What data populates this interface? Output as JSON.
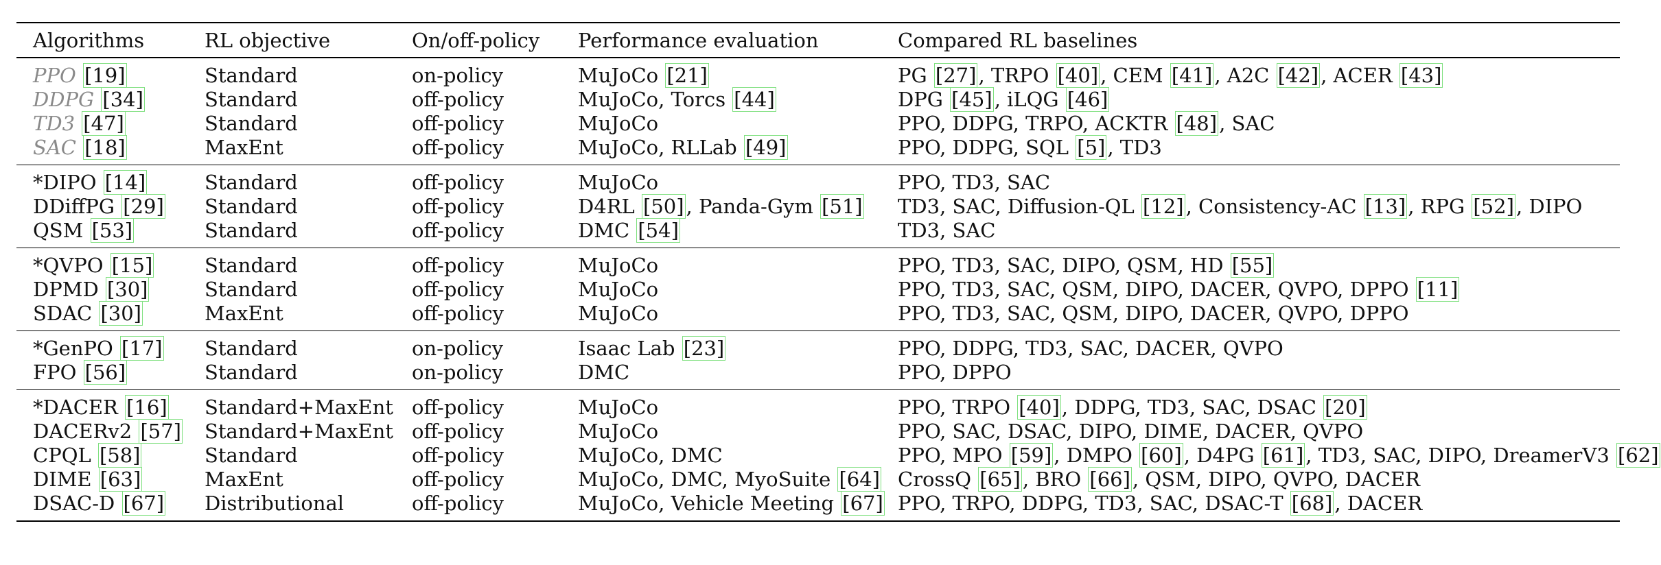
{
  "header": [
    "Algorithms",
    "RL objective",
    "On/off-policy",
    "Performance evaluation",
    "Compared RL baselines"
  ],
  "groups": [
    {
      "rows": [
        {
          "algorithm": [
            {
              "text": "PPO",
              "style": "gray"
            },
            {
              "text": " "
            },
            {
              "text": "[19]",
              "ref": true
            }
          ],
          "objective": "Standard",
          "policy": "on-policy",
          "evaluation": [
            {
              "text": "MuJoCo "
            },
            {
              "text": "[21]",
              "ref": true
            }
          ],
          "baselines": [
            {
              "text": "PG "
            },
            {
              "text": "[27]",
              "ref": true
            },
            {
              "text": ", TRPO "
            },
            {
              "text": "[40]",
              "ref": true
            },
            {
              "text": ", CEM "
            },
            {
              "text": "[41]",
              "ref": true
            },
            {
              "text": ", A2C "
            },
            {
              "text": "[42]",
              "ref": true
            },
            {
              "text": ", ACER "
            },
            {
              "text": "[43]",
              "ref": true
            }
          ]
        },
        {
          "algorithm": [
            {
              "text": "DDPG",
              "style": "gray"
            },
            {
              "text": " "
            },
            {
              "text": "[34]",
              "ref": true
            }
          ],
          "objective": "Standard",
          "policy": "off-policy",
          "evaluation": [
            {
              "text": "MuJoCo, Torcs "
            },
            {
              "text": "[44]",
              "ref": true
            }
          ],
          "baselines": [
            {
              "text": "DPG "
            },
            {
              "text": "[45]",
              "ref": true
            },
            {
              "text": ", iLQG "
            },
            {
              "text": "[46]",
              "ref": true
            }
          ]
        },
        {
          "algorithm": [
            {
              "text": "TD3",
              "style": "gray"
            },
            {
              "text": " "
            },
            {
              "text": "[47]",
              "ref": true
            }
          ],
          "objective": "Standard",
          "policy": "off-policy",
          "evaluation": [
            {
              "text": "MuJoCo"
            }
          ],
          "baselines": [
            {
              "text": "PPO, DDPG, TRPO, ACKTR "
            },
            {
              "text": "[48]",
              "ref": true
            },
            {
              "text": ", SAC"
            }
          ]
        },
        {
          "algorithm": [
            {
              "text": "SAC",
              "style": "gray"
            },
            {
              "text": " "
            },
            {
              "text": "[18]",
              "ref": true
            }
          ],
          "objective": "MaxEnt",
          "policy": "off-policy",
          "evaluation": [
            {
              "text": "MuJoCo, RLLab "
            },
            {
              "text": "[49]",
              "ref": true
            }
          ],
          "baselines": [
            {
              "text": "PPO, DDPG, SQL "
            },
            {
              "text": "[5]",
              "ref": true
            },
            {
              "text": ", TD3"
            }
          ]
        }
      ]
    },
    {
      "rows": [
        {
          "algorithm": [
            {
              "text": "*DIPO "
            },
            {
              "text": "[14]",
              "ref": true
            }
          ],
          "objective": "Standard",
          "policy": "off-policy",
          "evaluation": [
            {
              "text": "MuJoCo"
            }
          ],
          "baselines": [
            {
              "text": "PPO, TD3, SAC"
            }
          ]
        },
        {
          "algorithm": [
            {
              "text": "DDiffPG "
            },
            {
              "text": "[29]",
              "ref": true
            }
          ],
          "objective": "Standard",
          "policy": "off-policy",
          "evaluation": [
            {
              "text": "D4RL "
            },
            {
              "text": "[50]",
              "ref": true
            },
            {
              "text": ", Panda-Gym "
            },
            {
              "text": "[51]",
              "ref": true
            }
          ],
          "baselines": [
            {
              "text": "TD3, SAC, Diffusion-QL "
            },
            {
              "text": "[12]",
              "ref": true
            },
            {
              "text": ", Consistency-AC "
            },
            {
              "text": "[13]",
              "ref": true
            },
            {
              "text": ", RPG "
            },
            {
              "text": "[52]",
              "ref": true
            },
            {
              "text": ", DIPO"
            }
          ]
        },
        {
          "algorithm": [
            {
              "text": "QSM "
            },
            {
              "text": "[53]",
              "ref": true
            }
          ],
          "objective": "Standard",
          "policy": "off-policy",
          "evaluation": [
            {
              "text": "DMC "
            },
            {
              "text": "[54]",
              "ref": true
            }
          ],
          "baselines": [
            {
              "text": "TD3, SAC"
            }
          ]
        }
      ]
    },
    {
      "rows": [
        {
          "algorithm": [
            {
              "text": "*QVPO "
            },
            {
              "text": "[15]",
              "ref": true
            }
          ],
          "objective": "Standard",
          "policy": "off-policy",
          "evaluation": [
            {
              "text": "MuJoCo"
            }
          ],
          "baselines": [
            {
              "text": "PPO, TD3, SAC, DIPO, QSM, HD "
            },
            {
              "text": "[55]",
              "ref": true
            }
          ]
        },
        {
          "algorithm": [
            {
              "text": "DPMD "
            },
            {
              "text": "[30]",
              "ref": true
            }
          ],
          "objective": "Standard",
          "policy": "off-policy",
          "evaluation": [
            {
              "text": "MuJoCo"
            }
          ],
          "baselines": [
            {
              "text": "PPO, TD3, SAC, QSM, DIPO, DACER, QVPO, DPPO "
            },
            {
              "text": "[11]",
              "ref": true
            }
          ]
        },
        {
          "algorithm": [
            {
              "text": "SDAC "
            },
            {
              "text": "[30]",
              "ref": true
            }
          ],
          "objective": "MaxEnt",
          "policy": "off-policy",
          "evaluation": [
            {
              "text": "MuJoCo"
            }
          ],
          "baselines": [
            {
              "text": "PPO, TD3, SAC, QSM, DIPO, DACER, QVPO, DPPO"
            }
          ]
        }
      ]
    },
    {
      "rows": [
        {
          "algorithm": [
            {
              "text": "*GenPO "
            },
            {
              "text": "[17]",
              "ref": true
            }
          ],
          "objective": "Standard",
          "policy": "on-policy",
          "evaluation": [
            {
              "text": "Isaac Lab "
            },
            {
              "text": "[23]",
              "ref": true
            }
          ],
          "baselines": [
            {
              "text": "PPO, DDPG, TD3, SAC, DACER, QVPO"
            }
          ]
        },
        {
          "algorithm": [
            {
              "text": "FPO "
            },
            {
              "text": "[56]",
              "ref": true
            }
          ],
          "objective": "Standard",
          "policy": "on-policy",
          "evaluation": [
            {
              "text": "DMC"
            }
          ],
          "baselines": [
            {
              "text": "PPO, DPPO"
            }
          ]
        }
      ]
    },
    {
      "rows": [
        {
          "algorithm": [
            {
              "text": "*DACER "
            },
            {
              "text": "[16]",
              "ref": true
            }
          ],
          "objective": "Standard+MaxEnt",
          "policy": "off-policy",
          "evaluation": [
            {
              "text": "MuJoCo"
            }
          ],
          "baselines": [
            {
              "text": "PPO, TRPO "
            },
            {
              "text": "[40]",
              "ref": true
            },
            {
              "text": ", DDPG, TD3, SAC, DSAC "
            },
            {
              "text": "[20]",
              "ref": true
            }
          ]
        },
        {
          "algorithm": [
            {
              "text": "DACERv2 "
            },
            {
              "text": "[57]",
              "ref": true
            }
          ],
          "objective": "Standard+MaxEnt",
          "policy": "off-policy",
          "evaluation": [
            {
              "text": "MuJoCo"
            }
          ],
          "baselines": [
            {
              "text": "PPO, SAC, DSAC, DIPO, DIME, DACER, QVPO"
            }
          ]
        },
        {
          "algorithm": [
            {
              "text": "CPQL "
            },
            {
              "text": "[58]",
              "ref": true
            }
          ],
          "objective": "Standard",
          "policy": "off-policy",
          "evaluation": [
            {
              "text": "MuJoCo, DMC"
            }
          ],
          "baselines": [
            {
              "text": "PPO, MPO "
            },
            {
              "text": "[59]",
              "ref": true
            },
            {
              "text": ", DMPO "
            },
            {
              "text": "[60]",
              "ref": true
            },
            {
              "text": ", D4PG "
            },
            {
              "text": "[61]",
              "ref": true
            },
            {
              "text": ", TD3, SAC, DIPO, DreamerV3 "
            },
            {
              "text": "[62]",
              "ref": true
            }
          ]
        },
        {
          "algorithm": [
            {
              "text": "DIME "
            },
            {
              "text": "[63]",
              "ref": true
            }
          ],
          "objective": "MaxEnt",
          "policy": "off-policy",
          "evaluation": [
            {
              "text": "MuJoCo, DMC, MyoSuite "
            },
            {
              "text": "[64]",
              "ref": true
            }
          ],
          "baselines": [
            {
              "text": "CrossQ "
            },
            {
              "text": "[65]",
              "ref": true
            },
            {
              "text": ", BRO "
            },
            {
              "text": "[66]",
              "ref": true
            },
            {
              "text": ", QSM, DIPO, QVPO, DACER"
            }
          ]
        },
        {
          "algorithm": [
            {
              "text": "DSAC-D "
            },
            {
              "text": "[67]",
              "ref": true
            }
          ],
          "objective": "Distributional",
          "policy": "off-policy",
          "evaluation": [
            {
              "text": "MuJoCo, Vehicle Meeting "
            },
            {
              "text": "[67]",
              "ref": true
            }
          ],
          "baselines": [
            {
              "text": "PPO, TRPO, DDPG, TD3, SAC, DSAC-T "
            },
            {
              "text": "[68]",
              "ref": true
            },
            {
              "text": ", DACER"
            }
          ]
        }
      ]
    }
  ],
  "colors": {
    "text": "#111111",
    "rule": "#000000",
    "gray_name": "#8a8a8a",
    "ref_box": "#7fe07f"
  }
}
